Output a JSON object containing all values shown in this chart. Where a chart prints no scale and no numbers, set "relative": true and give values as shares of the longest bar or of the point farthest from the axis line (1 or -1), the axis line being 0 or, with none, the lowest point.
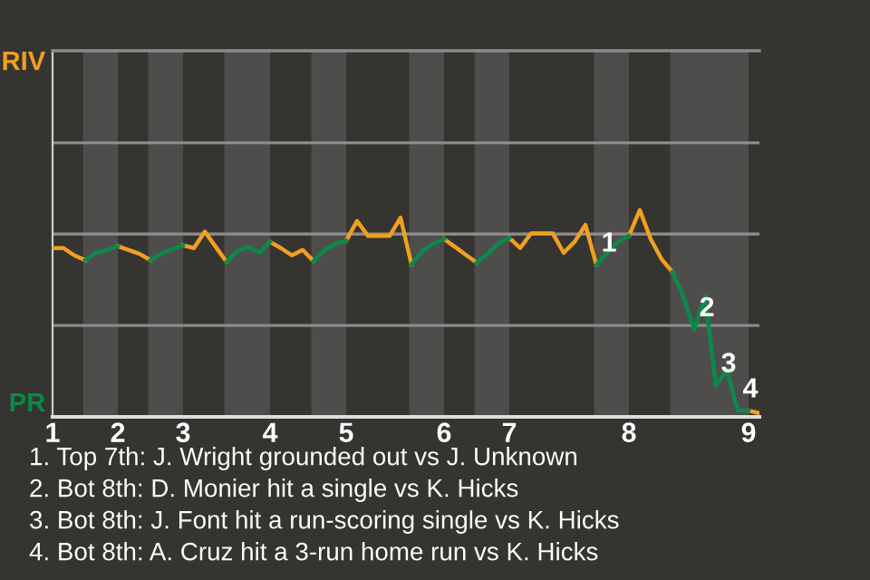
{
  "chart_data": {
    "type": "line",
    "relative": true,
    "categories": [
      "1",
      null,
      null,
      null,
      null,
      null,
      "2",
      null,
      null,
      null,
      null,
      null,
      "3",
      null,
      null,
      null,
      null,
      null,
      null,
      null,
      "4",
      null,
      null,
      null,
      null,
      null,
      null,
      "5",
      null,
      null,
      null,
      null,
      null,
      null,
      null,
      null,
      "6",
      null,
      null,
      null,
      null,
      null,
      "7",
      null,
      null,
      null,
      null,
      null,
      null,
      null,
      null,
      null,
      null,
      "8",
      null,
      null,
      null,
      null,
      null,
      null,
      null,
      null,
      null,
      null,
      "9",
      null
    ],
    "ref_lines": [
      {
        "axis": "y",
        "value": 0.442,
        "color": "#8a8a8a"
      },
      {
        "axis": "y",
        "value": 0.884,
        "color": "#8a8a8a"
      },
      {
        "axis": "y",
        "value": 1.325,
        "color": "#8a8a8a"
      }
    ],
    "marker": "none",
    "line_style": "solid",
    "series": [
      {
        "color": "#f0a020",
        "values": [
          0.816,
          0.816,
          0.781,
          0.758,
          null,
          null,
          0.825,
          0.807,
          0.788,
          0.758,
          null,
          null,
          0.83,
          0.816,
          0.896,
          0.822,
          0.749,
          null,
          null,
          null,
          0.846,
          0.816,
          0.781,
          0.807,
          0.753,
          null,
          null,
          0.852,
          0.947,
          0.875,
          0.875,
          0.875,
          0.963,
          0.737,
          null,
          null,
          0.86,
          0.822,
          0.783,
          0.746,
          null,
          null,
          0.866,
          0.816,
          0.887,
          0.887,
          0.887,
          0.793,
          0.846,
          0.928,
          0.735,
          null,
          null,
          0.875,
          1,
          0.86,
          0.763,
          0.7,
          null,
          null,
          null,
          null,
          null,
          null,
          0.03,
          0.018
        ]
      },
      {
        "color": "#0a8a4a",
        "values": [
          null,
          null,
          null,
          0.758,
          0.793,
          0.807,
          0.825,
          null,
          null,
          0.758,
          0.788,
          0.811,
          0.83,
          null,
          null,
          null,
          0.749,
          0.802,
          0.822,
          0.793,
          0.846,
          null,
          null,
          null,
          0.753,
          0.807,
          0.837,
          0.852,
          null,
          null,
          null,
          null,
          null,
          0.737,
          0.802,
          0.837,
          0.86,
          null,
          null,
          0.746,
          0.788,
          0.837,
          0.866,
          null,
          null,
          null,
          null,
          null,
          null,
          null,
          0.735,
          0.793,
          0.846,
          0.875,
          null,
          null,
          null,
          0.7,
          0.583,
          0.422,
          0.583,
          0.152,
          0.228,
          0.03,
          0.03,
          null
        ]
      }
    ],
    "annotations": [
      "RIV",
      "PR",
      {
        "text": "1",
        "y": 0.735
      },
      {
        "text": "2",
        "y": 0.422
      },
      {
        "text": "3",
        "y": 0.152
      },
      {
        "text": "4",
        "y": 0.03
      },
      "1. Top 7th: J. Wright grounded out vs J. Unknown",
      "2. Bot 8th: D. Monier hit a single vs K. Hicks",
      "3. Bot 8th: J. Font hit a run-scoring single vs K. Hicks",
      "4. Bot 8th: A. Cruz hit a 3-run home run vs K. Hicks"
    ]
  }
}
